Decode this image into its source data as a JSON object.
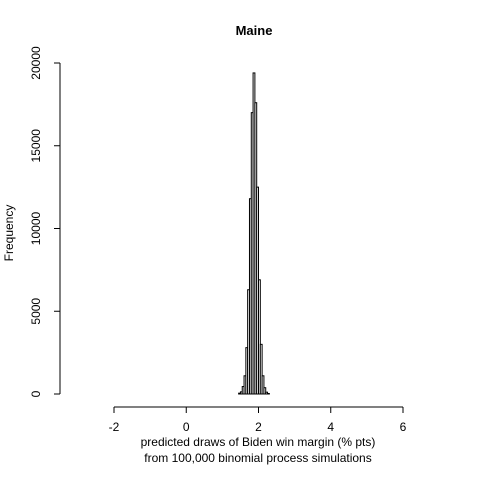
{
  "chart_data": {
    "type": "bar",
    "title": "Maine",
    "xlabel_line1": "predicted draws of Biden win margin (% pts)",
    "xlabel_line2": "from 100,000 binomial process simulations",
    "ylabel": "Frequency",
    "xlim": [
      -2,
      6
    ],
    "ylim": [
      0,
      20000
    ],
    "x_ticks": [
      -2,
      0,
      2,
      4,
      6
    ],
    "y_ticks": [
      0,
      5000,
      10000,
      15000,
      20000
    ],
    "bin_width": 0.05,
    "bins": [
      {
        "x0": 1.45,
        "x1": 1.5,
        "count": 50
      },
      {
        "x0": 1.5,
        "x1": 1.55,
        "count": 130
      },
      {
        "x0": 1.55,
        "x1": 1.6,
        "count": 450
      },
      {
        "x0": 1.6,
        "x1": 1.65,
        "count": 1100
      },
      {
        "x0": 1.65,
        "x1": 1.7,
        "count": 2800
      },
      {
        "x0": 1.7,
        "x1": 1.75,
        "count": 6300
      },
      {
        "x0": 1.75,
        "x1": 1.8,
        "count": 11800
      },
      {
        "x0": 1.8,
        "x1": 1.85,
        "count": 17000
      },
      {
        "x0": 1.85,
        "x1": 1.9,
        "count": 19400
      },
      {
        "x0": 1.9,
        "x1": 1.95,
        "count": 17600
      },
      {
        "x0": 1.95,
        "x1": 2.0,
        "count": 12500
      },
      {
        "x0": 2.0,
        "x1": 2.05,
        "count": 6900
      },
      {
        "x0": 2.05,
        "x1": 2.1,
        "count": 3000
      },
      {
        "x0": 2.1,
        "x1": 2.15,
        "count": 1100
      },
      {
        "x0": 2.15,
        "x1": 2.2,
        "count": 380
      },
      {
        "x0": 2.2,
        "x1": 2.25,
        "count": 110
      },
      {
        "x0": 2.25,
        "x1": 2.3,
        "count": 30
      }
    ]
  }
}
